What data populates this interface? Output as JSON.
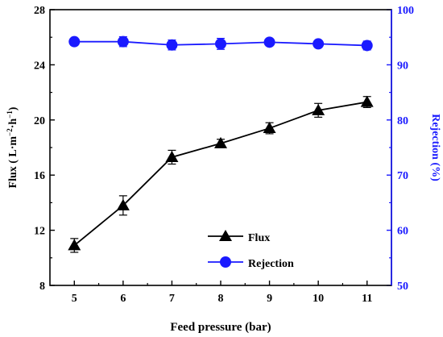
{
  "chart_data": {
    "type": "line",
    "x": [
      5,
      6,
      7,
      8,
      9,
      10,
      11
    ],
    "xlabel": "Feed pressure (bar)",
    "xlim": [
      4.5,
      11.5
    ],
    "xticks": [
      "5",
      "6",
      "7",
      "8",
      "9",
      "10",
      "11"
    ],
    "left_axis": {
      "ylim": [
        8,
        28
      ],
      "ticks": [
        "8",
        "12",
        "16",
        "20",
        "24",
        "28"
      ],
      "label": {
        "main": "Flux ( L·m",
        "sup1": "−2",
        "mid": "·h",
        "sup2": "−1",
        "end": ")"
      },
      "color": "#000000"
    },
    "right_axis": {
      "ylim": [
        50,
        100
      ],
      "ticks": [
        "50",
        "60",
        "70",
        "80",
        "90",
        "100"
      ],
      "label": "Rejection (%)",
      "color": "#1a1aff"
    },
    "series": [
      {
        "name": "Flux",
        "axis": "left",
        "marker": "triangle",
        "color": "#000000",
        "values": [
          10.9,
          13.8,
          17.3,
          18.3,
          19.4,
          20.7,
          21.3
        ],
        "errors": [
          0.5,
          0.7,
          0.5,
          0.3,
          0.4,
          0.5,
          0.4
        ]
      },
      {
        "name": "Rejection",
        "axis": "right",
        "marker": "circle",
        "color": "#1a1aff",
        "values": [
          94.2,
          94.2,
          93.6,
          93.8,
          94.1,
          93.8,
          93.5
        ],
        "errors": [
          0.6,
          0.9,
          0.9,
          1.0,
          0.4,
          0.5,
          0.8
        ]
      }
    ],
    "legend": {
      "placement": "bottom-center"
    }
  }
}
